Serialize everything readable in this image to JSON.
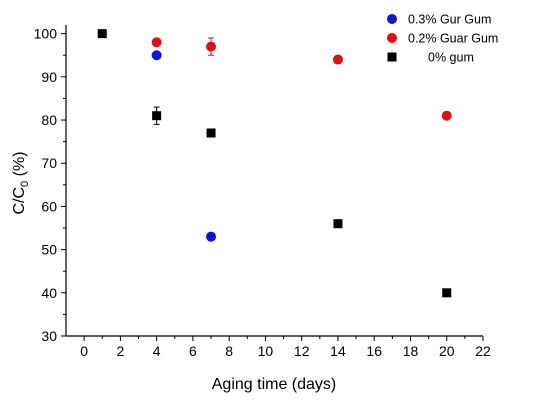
{
  "chart_data": {
    "type": "scatter",
    "title": "",
    "xlabel": "Aging time (days)",
    "ylabel_main": "C/C",
    "ylabel_sub": "0",
    "ylabel_unit": " (%)",
    "xlim": [
      -1,
      22
    ],
    "ylim": [
      30,
      102
    ],
    "x_ticks": [
      0,
      2,
      4,
      6,
      8,
      10,
      12,
      14,
      16,
      18,
      20,
      22
    ],
    "y_ticks": [
      30,
      40,
      50,
      60,
      70,
      80,
      90,
      100
    ],
    "grid": false,
    "legend_position": "top-right",
    "series": [
      {
        "name": "0.3% Gur Gum",
        "marker": "circle",
        "color": "#1010e0",
        "points": [
          {
            "x": 4,
            "y": 95,
            "err": 0
          },
          {
            "x": 7,
            "y": 53,
            "err": 0
          }
        ]
      },
      {
        "name": "0.2% Guar Gum",
        "marker": "circle",
        "color": "#e01010",
        "points": [
          {
            "x": 4,
            "y": 98,
            "err": 0
          },
          {
            "x": 7,
            "y": 97,
            "err": 2
          },
          {
            "x": 14,
            "y": 94,
            "err": 0
          },
          {
            "x": 20,
            "y": 81,
            "err": 0
          }
        ]
      },
      {
        "name": "0% gum",
        "marker": "square",
        "color": "#000000",
        "points": [
          {
            "x": 1,
            "y": 100,
            "err": 0
          },
          {
            "x": 4,
            "y": 81,
            "err": 2
          },
          {
            "x": 7,
            "y": 77,
            "err": 0
          },
          {
            "x": 14,
            "y": 56,
            "err": 0
          },
          {
            "x": 20,
            "y": 40,
            "err": 0
          }
        ]
      }
    ]
  }
}
